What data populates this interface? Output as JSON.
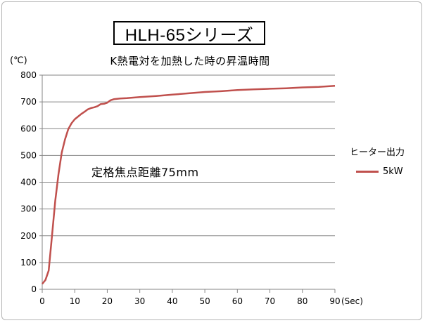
{
  "chart_data": {
    "type": "line",
    "title": "HLH-65シリーズ",
    "subtitle": "K熱電対を加熱した時の昇温時間",
    "y_unit": "(℃)",
    "x_unit": "(Sec)",
    "annotation": "定格焦点距離75mm",
    "legend_title": "ヒーター出力",
    "xlim": [
      0,
      90
    ],
    "ylim": [
      0,
      800
    ],
    "x_ticks": [
      0,
      10,
      20,
      30,
      40,
      50,
      60,
      70,
      80,
      90
    ],
    "y_ticks": [
      0,
      100,
      200,
      300,
      400,
      500,
      600,
      700,
      800
    ],
    "grid": "horizontal",
    "legend_position": "right",
    "series": [
      {
        "name": "5kW",
        "color": "#c0504d",
        "x": [
          0,
          1,
          2,
          3,
          4,
          5,
          6,
          7,
          8,
          9,
          10,
          11,
          12,
          13,
          14,
          15,
          16,
          17,
          18,
          19,
          20,
          21,
          22,
          24,
          26,
          28,
          30,
          35,
          40,
          45,
          50,
          55,
          60,
          65,
          70,
          75,
          80,
          85,
          90
        ],
        "y": [
          20,
          35,
          70,
          200,
          330,
          430,
          510,
          560,
          598,
          620,
          635,
          645,
          655,
          663,
          672,
          677,
          680,
          684,
          692,
          693,
          697,
          706,
          710,
          713,
          714,
          716,
          718,
          722,
          727,
          732,
          737,
          740,
          744,
          747,
          749,
          751,
          754,
          756,
          760
        ]
      }
    ]
  }
}
